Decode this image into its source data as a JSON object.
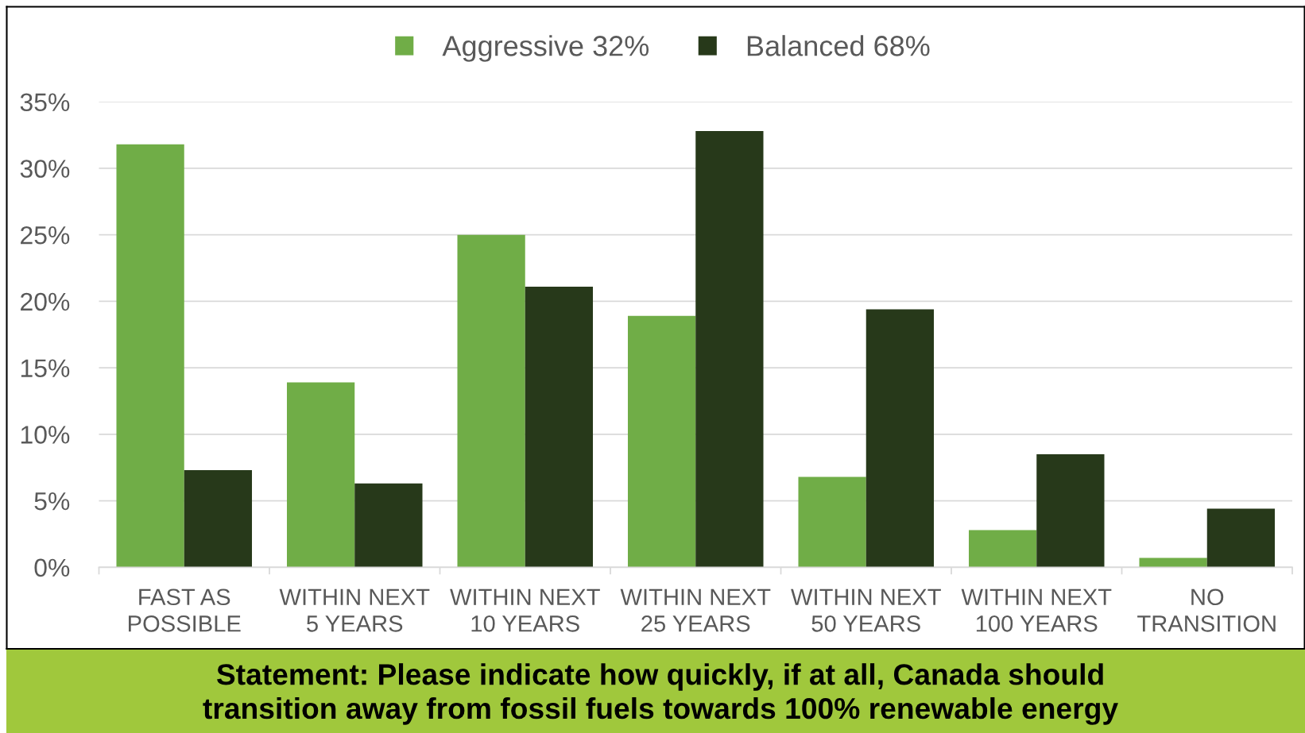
{
  "chart_data": {
    "type": "bar",
    "categories": [
      "FAST AS\nPOSSIBLE",
      "WITHIN NEXT\n5 YEARS",
      "WITHIN NEXT\n10 YEARS",
      "WITHIN NEXT\n25 YEARS",
      "WITHIN NEXT\n50 YEARS",
      "WITHIN NEXT\n100 YEARS",
      "NO\nTRANSITION"
    ],
    "series": [
      {
        "name": "Aggressive 32%",
        "color": "#70ad47",
        "values": [
          31.8,
          13.9,
          25.0,
          18.9,
          6.8,
          2.8,
          0.7
        ]
      },
      {
        "name": "Balanced 68%",
        "color": "#27391a",
        "values": [
          7.3,
          6.3,
          21.1,
          32.8,
          19.4,
          8.5,
          4.4
        ]
      }
    ],
    "ylim": [
      0,
      35
    ],
    "yticks": [
      {
        "value": 0,
        "label": "0%"
      },
      {
        "value": 5,
        "label": "5%"
      },
      {
        "value": 10,
        "label": "10%"
      },
      {
        "value": 15,
        "label": "15%"
      },
      {
        "value": 20,
        "label": "20%"
      },
      {
        "value": 25,
        "label": "25%"
      },
      {
        "value": 30,
        "label": "30%"
      },
      {
        "value": 35,
        "label": "35%"
      }
    ],
    "grid": "y",
    "legend": "top",
    "annotations": [
      "Statement: Please indicate how quickly, if at all, Canada should\ntransition away from fossil fuels towards 100% renewable energy"
    ]
  }
}
